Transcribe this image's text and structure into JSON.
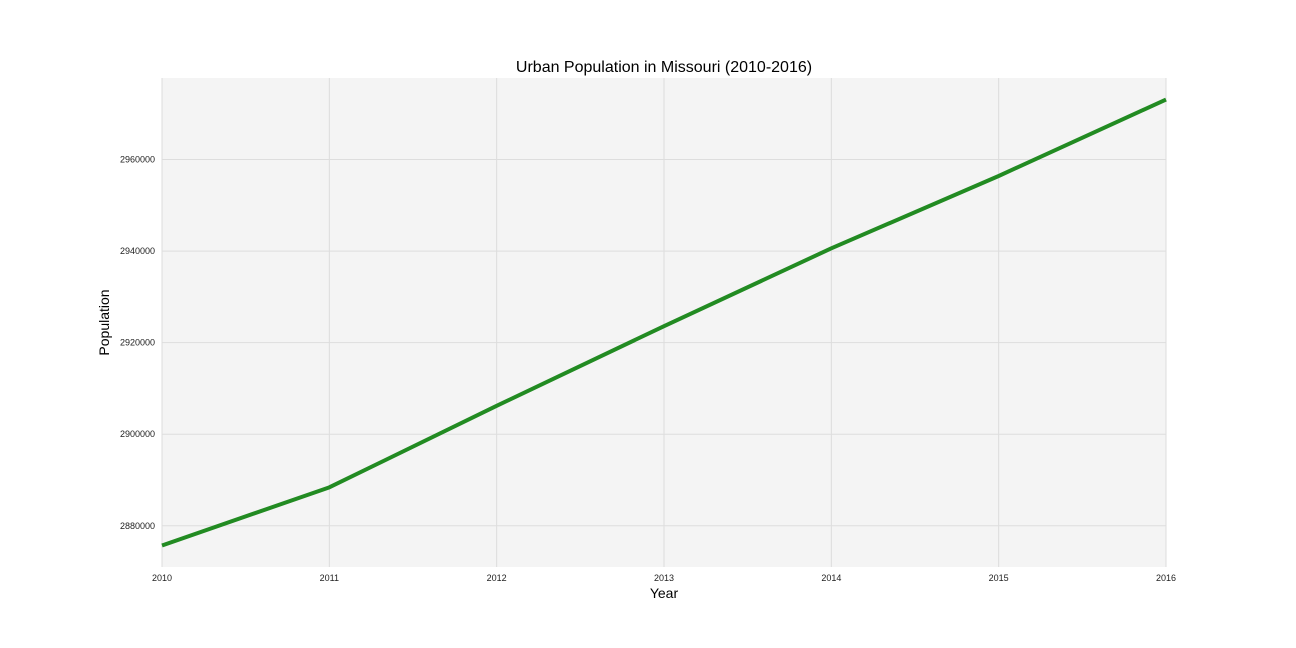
{
  "chart_data": {
    "type": "line",
    "title": "Urban Population in Missouri (2010-2016)",
    "xlabel": "Year",
    "ylabel": "Population",
    "x": [
      2010,
      2011,
      2012,
      2013,
      2014,
      2015,
      2016
    ],
    "x_tick_labels": [
      "2010",
      "2011",
      "2012",
      "2013",
      "2014",
      "2015",
      "2016"
    ],
    "y_ticks": [
      2880000,
      2900000,
      2920000,
      2940000,
      2960000
    ],
    "y_tick_labels": [
      "2880000",
      "2900000",
      "2920000",
      "2940000",
      "2960000"
    ],
    "xlim": [
      2010,
      2016
    ],
    "ylim": [
      2871000,
      2977800
    ],
    "series": [
      {
        "color": "#228b22",
        "values": [
          2875700,
          2888400,
          2906200,
          2923600,
          2940600,
          2956400,
          2973100
        ]
      }
    ],
    "grid": true,
    "legend": "none",
    "plot_background": "#f4f4f4",
    "grid_color": "#dddddd"
  }
}
